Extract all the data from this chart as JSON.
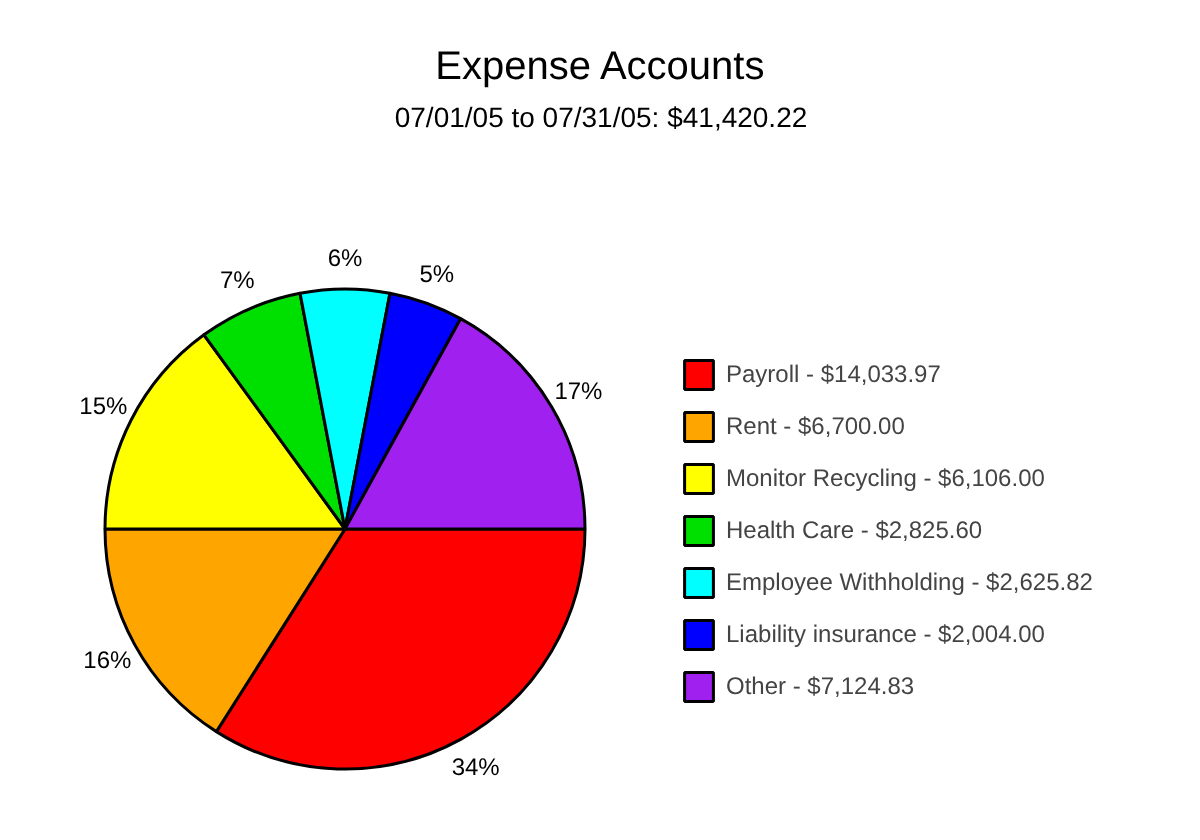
{
  "chart_data": {
    "type": "pie",
    "title": "Expense Accounts",
    "subtitle": "07/01/05 to 07/31/05: $41,420.22",
    "categories": [
      "Payroll - $14,033.97",
      "Rent - $6,700.00",
      "Monitor Recycling - $6,106.00",
      "Health Care - $2,825.60",
      "Employee Withholding - $2,625.82",
      "Liability insurance - $2,004.00",
      "Other - $7,124.83"
    ],
    "values": [
      34,
      16,
      15,
      7,
      6,
      5,
      17
    ],
    "colors": [
      "#ff0000",
      "#ffa500",
      "#ffff00",
      "#00e000",
      "#00ffff",
      "#0000ff",
      "#a020f0"
    ],
    "value_labels": [
      "34%",
      "16%",
      "15%",
      "7%",
      "6%",
      "5%",
      "17%"
    ],
    "legend": "right"
  }
}
